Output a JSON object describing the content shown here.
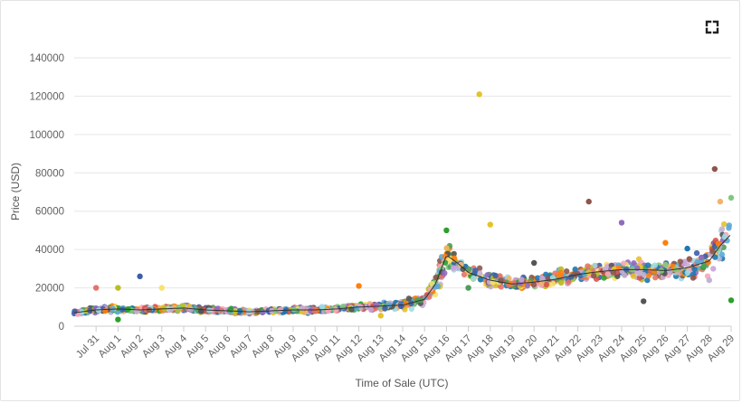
{
  "colors": {
    "grid": "#e6e6e6",
    "axis": "#cccccc",
    "trend": "#333333"
  },
  "toolbar": {
    "fullscreen_icon": "expand-icon"
  },
  "chart_data": {
    "type": "scatter",
    "title": "",
    "xlabel": "Time of Sale (UTC)",
    "ylabel": "Price (USD)",
    "ylim": [
      0,
      140000
    ],
    "yticks": [
      0,
      20000,
      40000,
      60000,
      80000,
      100000,
      120000,
      140000
    ],
    "ytick_labels": [
      "0",
      "20000",
      "40000",
      "60000",
      "80000",
      "100000",
      "120000",
      "140000"
    ],
    "xlim": [
      "Jul 30",
      "Aug 29"
    ],
    "x_tick_labels": [
      "Jul 31",
      "Aug 1",
      "Aug 2",
      "Aug 3",
      "Aug 4",
      "Aug 5",
      "Aug 6",
      "Aug 7",
      "Aug 8",
      "Aug 9",
      "Aug 10",
      "Aug 11",
      "Aug 12",
      "Aug 13",
      "Aug 14",
      "Aug 15",
      "Aug 16",
      "Aug 17",
      "Aug 18",
      "Aug 19",
      "Aug 20",
      "Aug 21",
      "Aug 22",
      "Aug 23",
      "Aug 24",
      "Aug 25",
      "Aug 26",
      "Aug 27",
      "Aug 28",
      "Aug 29"
    ],
    "grid": true,
    "legend": "none",
    "trend": [
      [
        "Jul 30",
        7000
      ],
      [
        "Jul 31",
        8500
      ],
      [
        "Aug 1",
        9000
      ],
      [
        "Aug 2",
        8500
      ],
      [
        "Aug 3",
        9000
      ],
      [
        "Aug 4",
        9500
      ],
      [
        "Aug 5",
        8500
      ],
      [
        "Aug 6",
        8000
      ],
      [
        "Aug 7",
        7500
      ],
      [
        "Aug 8",
        8000
      ],
      [
        "Aug 9",
        8500
      ],
      [
        "Aug 10",
        8500
      ],
      [
        "Aug 11",
        9000
      ],
      [
        "Aug 12",
        10000
      ],
      [
        "Aug 13",
        10500
      ],
      [
        "Aug 14",
        11000
      ],
      [
        "Aug 15",
        14000
      ],
      [
        "Aug 15 12:00",
        22000
      ],
      [
        "Aug 16",
        37000
      ],
      [
        "Aug 16 12:00",
        33000
      ],
      [
        "Aug 17",
        28000
      ],
      [
        "Aug 18",
        24000
      ],
      [
        "Aug 19",
        22000
      ],
      [
        "Aug 20",
        23000
      ],
      [
        "Aug 21",
        24500
      ],
      [
        "Aug 22",
        27000
      ],
      [
        "Aug 23",
        28500
      ],
      [
        "Aug 24",
        29500
      ],
      [
        "Aug 25",
        29500
      ],
      [
        "Aug 26",
        29000
      ],
      [
        "Aug 27",
        30500
      ],
      [
        "Aug 28",
        34000
      ],
      [
        "Aug 28 12:00",
        42000
      ],
      [
        "Aug 29",
        48000
      ]
    ],
    "outliers": [
      [
        "Aug 17 12:00",
        121000
      ],
      [
        "Aug 28 06:00",
        82000
      ],
      [
        "Aug 22 12:00",
        65000
      ],
      [
        "Aug 28 12:00",
        65000
      ],
      [
        "Aug 29",
        67000
      ],
      [
        "Aug 24",
        54000
      ],
      [
        "Aug 18",
        53000
      ],
      [
        "Aug 16",
        50000
      ],
      [
        "Aug 29",
        13500
      ],
      [
        "Aug 25",
        13000
      ],
      [
        "Aug 2",
        26000
      ],
      [
        "Jul 31",
        20000
      ],
      [
        "Aug 1",
        20000
      ],
      [
        "Aug 3",
        20000
      ],
      [
        "Aug 12",
        21000
      ],
      [
        "Aug 17",
        20000
      ],
      [
        "Aug 20",
        33000
      ],
      [
        "Aug 26",
        43500
      ],
      [
        "Aug 27",
        40500
      ],
      [
        "Aug 28",
        24000
      ],
      [
        "Aug 1",
        3500
      ],
      [
        "Aug 13",
        5500
      ]
    ]
  }
}
